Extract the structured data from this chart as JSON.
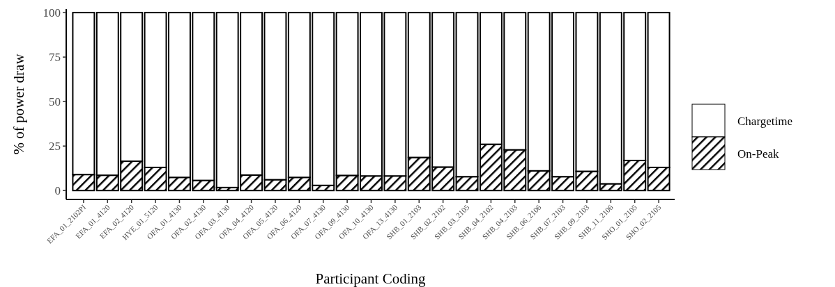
{
  "chart_data": {
    "type": "bar",
    "stacked": true,
    "xlabel": "Participant Coding",
    "ylabel": "% of power draw",
    "categories": [
      "EFA_01_2102PI",
      "EFA_01_4120",
      "EFA_02_4120",
      "HYE_01_5120",
      "OFA_01_4130",
      "OFA_02_4130",
      "OFA_03_4130",
      "OFA_04_4120",
      "OFA_05_4120",
      "OFA_06_4120",
      "OFA_07_4130",
      "OFA_09_4130",
      "OFA_10_4130",
      "OFA_13_4130",
      "SHB_01_2103",
      "SHB_02_2102",
      "SHB_03_2105",
      "SHB_04_2102",
      "SHB_04_2103",
      "SHB_06_2106",
      "SHB_07_2103",
      "SHB_09_2103",
      "SHB_11_2106",
      "SHO_01_2105",
      "SHO_02_2105"
    ],
    "series": [
      {
        "name": "On-Peak",
        "color": "#000000",
        "values": [
          9.0,
          8.6,
          16.5,
          13.0,
          7.4,
          5.7,
          1.7,
          8.7,
          6.1,
          7.4,
          2.9,
          8.5,
          8.2,
          8.2,
          18.6,
          13.2,
          7.8,
          26.0,
          22.9,
          11.1,
          7.8,
          10.8,
          3.8,
          16.9,
          13.0
        ]
      },
      {
        "name": "Chargetime",
        "color": "#ffffff",
        "values": [
          91.0,
          91.4,
          83.5,
          87.0,
          92.6,
          94.3,
          98.3,
          91.3,
          93.9,
          92.6,
          97.1,
          91.5,
          91.8,
          91.8,
          81.4,
          86.8,
          92.2,
          74.0,
          77.1,
          88.9,
          92.2,
          89.2,
          96.2,
          83.1,
          87.0
        ]
      }
    ],
    "ylim": [
      -5,
      102
    ],
    "yticks": [
      0,
      25,
      50,
      75,
      100
    ],
    "grid": false,
    "legend": "right"
  }
}
